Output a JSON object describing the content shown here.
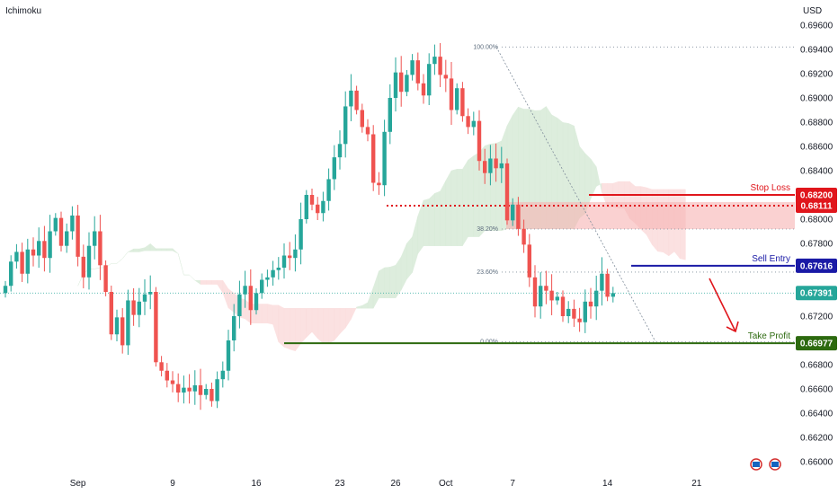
{
  "indicator_label": "Ichimoku",
  "currency_label": "USD",
  "colors": {
    "up": "#26a69a",
    "down": "#ef5350",
    "stop": "#e0161c",
    "entry": "#1a1aa6",
    "profit": "#2d6a0f",
    "last": "#26a69a",
    "cloud_green": "#d8ead8",
    "cloud_red": "#fbdcdc",
    "fib": "#7f8c9a"
  },
  "chart_data": {
    "type": "candlestick",
    "title": "",
    "ylim": [
      0.66,
      0.696
    ],
    "y_ticks": [
      "0.69600",
      "0.69400",
      "0.69200",
      "0.69000",
      "0.68800",
      "0.68600",
      "0.68400",
      "0.68200",
      "0.68000",
      "0.67800",
      "0.67600",
      "0.67400",
      "0.67200",
      "0.67000",
      "0.66800",
      "0.66600",
      "0.66400",
      "0.66200",
      "0.66000"
    ],
    "x_ticks": [
      {
        "label": "Sep",
        "i": 13
      },
      {
        "label": "9",
        "i": 30
      },
      {
        "label": "16",
        "i": 45
      },
      {
        "label": "23",
        "i": 60
      },
      {
        "label": "26",
        "i": 70
      },
      {
        "label": "Oct",
        "i": 79
      },
      {
        "label": "7",
        "i": 91
      },
      {
        "label": "14",
        "i": 108
      },
      {
        "label": "21",
        "i": 124
      }
    ],
    "closes": [
      0.6745,
      0.6765,
      0.6773,
      0.6755,
      0.6775,
      0.677,
      0.6782,
      0.6768,
      0.679,
      0.6801,
      0.6778,
      0.679,
      0.6803,
      0.6769,
      0.6752,
      0.6778,
      0.679,
      0.6762,
      0.674,
      0.6705,
      0.6719,
      0.6696,
      0.6733,
      0.6721,
      0.6732,
      0.6738,
      0.674,
      0.6682,
      0.6675,
      0.6667,
      0.6664,
      0.6657,
      0.6661,
      0.6658,
      0.6663,
      0.6655,
      0.666,
      0.665,
      0.6668,
      0.6675,
      0.67,
      0.672,
      0.6738,
      0.6745,
      0.6725,
      0.6739,
      0.675,
      0.6752,
      0.6758,
      0.676,
      0.677,
      0.6768,
      0.6775,
      0.68,
      0.682,
      0.6812,
      0.6805,
      0.6815,
      0.6833,
      0.6851,
      0.6862,
      0.6893,
      0.6906,
      0.689,
      0.6876,
      0.687,
      0.683,
      0.6828,
      0.6872,
      0.69,
      0.6921,
      0.6905,
      0.6919,
      0.6931,
      0.6912,
      0.6902,
      0.6928,
      0.6934,
      0.6919,
      0.6916,
      0.689,
      0.6908,
      0.6885,
      0.6876,
      0.6881,
      0.6848,
      0.6838,
      0.685,
      0.6842,
      0.6846,
      0.6799,
      0.6812,
      0.6792,
      0.6779,
      0.6752,
      0.6728,
      0.6745,
      0.6741,
      0.6733,
      0.6736,
      0.672,
      0.6726,
      0.6718,
      0.6715,
      0.6732,
      0.6728,
      0.6741,
      0.6755,
      0.6736,
      0.6739
    ],
    "last_price": 0.67391,
    "levels": [
      {
        "name": "Stop Loss",
        "label": "Stop Loss",
        "value": 0.682,
        "tag": "0.68200"
      },
      {
        "name": "resistance",
        "label": "",
        "value": 0.68111,
        "tag": "0.68111"
      },
      {
        "name": "Sell Entry",
        "label": "Sell Entry",
        "value": 0.67616,
        "tag": "0.67616"
      },
      {
        "name": "Take Profit",
        "label": "Take Profit",
        "value": 0.66977,
        "tag": "0.66977"
      }
    ],
    "last_tag": "0.67391",
    "fib": {
      "high": 0.6942,
      "low": 0.6699,
      "levels": [
        {
          "ratio": 1.0,
          "label": "100.00%"
        },
        {
          "ratio": 0.382,
          "label": "38.20%"
        },
        {
          "ratio": 0.236,
          "label": "23.60%"
        },
        {
          "ratio": 0.0,
          "label": "0.00%"
        }
      ]
    }
  }
}
